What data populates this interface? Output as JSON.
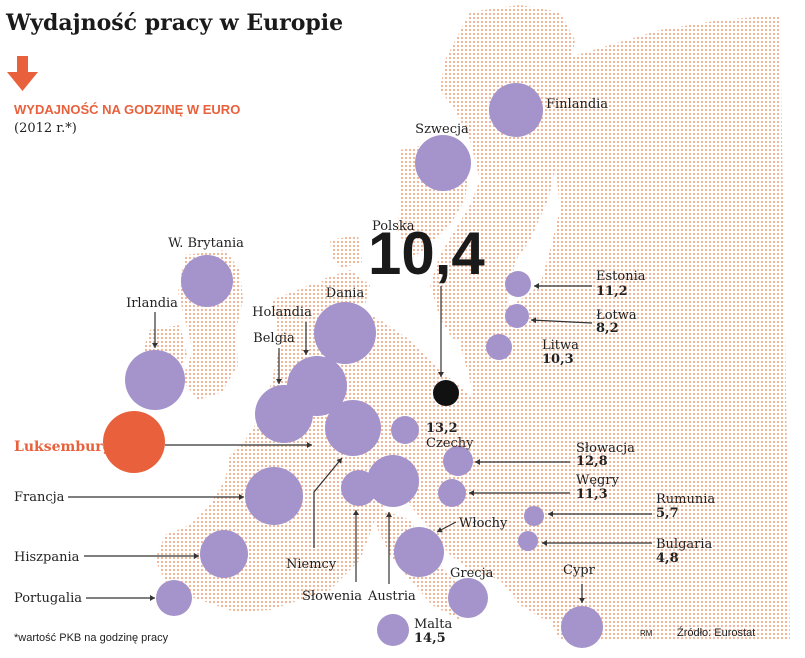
{
  "colors": {
    "bubble": "#a594cb",
    "highlight": "#e8613c",
    "focus": "#111111",
    "map_dots": "#eeb08e",
    "accent_text": "#e8613c"
  },
  "header": {
    "title": "Wydajność pracy w Europie",
    "subtitle": "WYDAJNOŚĆ NA GODZINĘ W EURO",
    "period": "(2012 r.*)"
  },
  "footer": {
    "note": "*wartość PKB na godzinę pracy",
    "initials": "RM",
    "source": "Źródło: Eurostat"
  },
  "chart_data": {
    "type": "bubble-map",
    "title": "Wydajność pracy w Europie",
    "subtitle": "WYDAJNOŚĆ NA GODZINĘ W EURO",
    "period": "(2012 r.*)",
    "unit": "EUR per hour",
    "highlight": "Luksemburg",
    "focus": "Polska",
    "countries": [
      {
        "name": "Polska",
        "value": "10,4"
      },
      {
        "name": "Estonia",
        "value": "11,2"
      },
      {
        "name": "Łotwa",
        "value": "8,2"
      },
      {
        "name": "Litwa",
        "value": "10,3"
      },
      {
        "name": "Czechy",
        "value": "13,2"
      },
      {
        "name": "Słowacja",
        "value": "12,8"
      },
      {
        "name": "Węgry",
        "value": "11,3"
      },
      {
        "name": "Rumunia",
        "value": "5,7"
      },
      {
        "name": "Bulgaria",
        "value": "4,8"
      },
      {
        "name": "Malta",
        "value": "14,5"
      },
      {
        "name": "Finlandia",
        "value": null
      },
      {
        "name": "Szwecja",
        "value": null
      },
      {
        "name": "W. Brytania",
        "value": null
      },
      {
        "name": "Irlandia",
        "value": null
      },
      {
        "name": "Holandia",
        "value": null
      },
      {
        "name": "Dania",
        "value": null
      },
      {
        "name": "Belgia",
        "value": null
      },
      {
        "name": "Luksemburg",
        "value": null
      },
      {
        "name": "Niemcy",
        "value": null
      },
      {
        "name": "Francja",
        "value": null
      },
      {
        "name": "Hiszpania",
        "value": null
      },
      {
        "name": "Portugalia",
        "value": null
      },
      {
        "name": "Słowenia",
        "value": null
      },
      {
        "name": "Austria",
        "value": null
      },
      {
        "name": "Włochy",
        "value": null
      },
      {
        "name": "Grecja",
        "value": null
      },
      {
        "name": "Cypr",
        "value": null
      }
    ]
  }
}
